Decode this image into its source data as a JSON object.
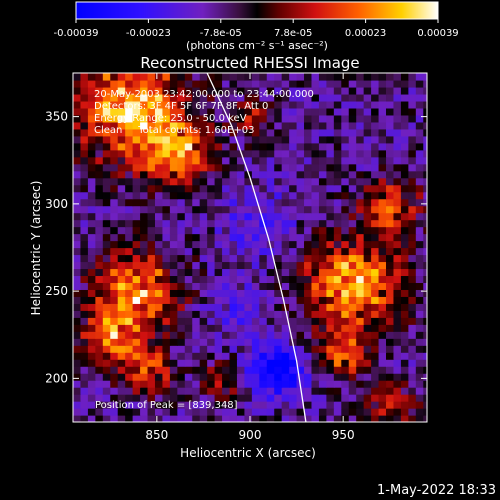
{
  "colorbar": {
    "tick_labels": [
      "-0.00039",
      "-0.00023",
      "-7.8e-05",
      "7.8e-05",
      "0.00023",
      "0.00039"
    ],
    "units_label": "(photons cm⁻² s⁻¹ asec⁻²)",
    "range": [
      -0.00039,
      0.00039
    ]
  },
  "chart_data": {
    "type": "heatmap",
    "title": "Reconstructed RHESSI Image",
    "xlabel": "Heliocentric X (arcsec)",
    "ylabel": "Heliocentric Y (arcsec)",
    "xlim": [
      805,
      995
    ],
    "ylim": [
      175,
      375
    ],
    "x_ticks": [
      850,
      900,
      950
    ],
    "y_ticks": [
      200,
      250,
      300,
      350
    ],
    "annotations": [
      "20-May-2003 23:42:00.000 to 23:44:00.000",
      "Detectors: 3F 4F 5F 6F 7F 8F, Att 0",
      "Energy Range: 25.0 - 50.0 keV",
      "Clean     Total counts: 1.60E+03"
    ],
    "peak_label": "Position of Peak = [839,348]",
    "peak_position": [
      839,
      348
    ],
    "limb_curve": [
      [
        877,
        375
      ],
      [
        890,
        345
      ],
      [
        900,
        315
      ],
      [
        910,
        280
      ],
      [
        918,
        245
      ],
      [
        925,
        210
      ],
      [
        930,
        175
      ]
    ],
    "bright_regions": [
      {
        "x": 835,
        "y": 355,
        "r": 28,
        "v": 0.00039
      },
      {
        "x": 862,
        "y": 330,
        "r": 18,
        "v": 0.0003
      },
      {
        "x": 840,
        "y": 250,
        "r": 22,
        "v": 0.00032
      },
      {
        "x": 825,
        "y": 225,
        "r": 16,
        "v": 0.00026
      },
      {
        "x": 845,
        "y": 205,
        "r": 14,
        "v": 0.00022
      },
      {
        "x": 955,
        "y": 255,
        "r": 26,
        "v": 0.00036
      },
      {
        "x": 975,
        "y": 300,
        "r": 15,
        "v": 0.00025
      },
      {
        "x": 950,
        "y": 215,
        "r": 14,
        "v": 0.00024
      },
      {
        "x": 975,
        "y": 185,
        "r": 12,
        "v": 0.00022
      },
      {
        "x": 885,
        "y": 200,
        "r": 10,
        "v": 0.00018
      },
      {
        "x": 900,
        "y": 350,
        "r": 10,
        "v": 0.00015
      }
    ],
    "dark_regions": [
      {
        "x": 915,
        "y": 205,
        "r": 14,
        "v": -0.00035
      },
      {
        "x": 905,
        "y": 290,
        "r": 20,
        "v": -0.00012
      },
      {
        "x": 895,
        "y": 240,
        "r": 16,
        "v": -0.0001
      }
    ]
  },
  "footer": {
    "date_stamp": "1-May-2022 18:33"
  }
}
